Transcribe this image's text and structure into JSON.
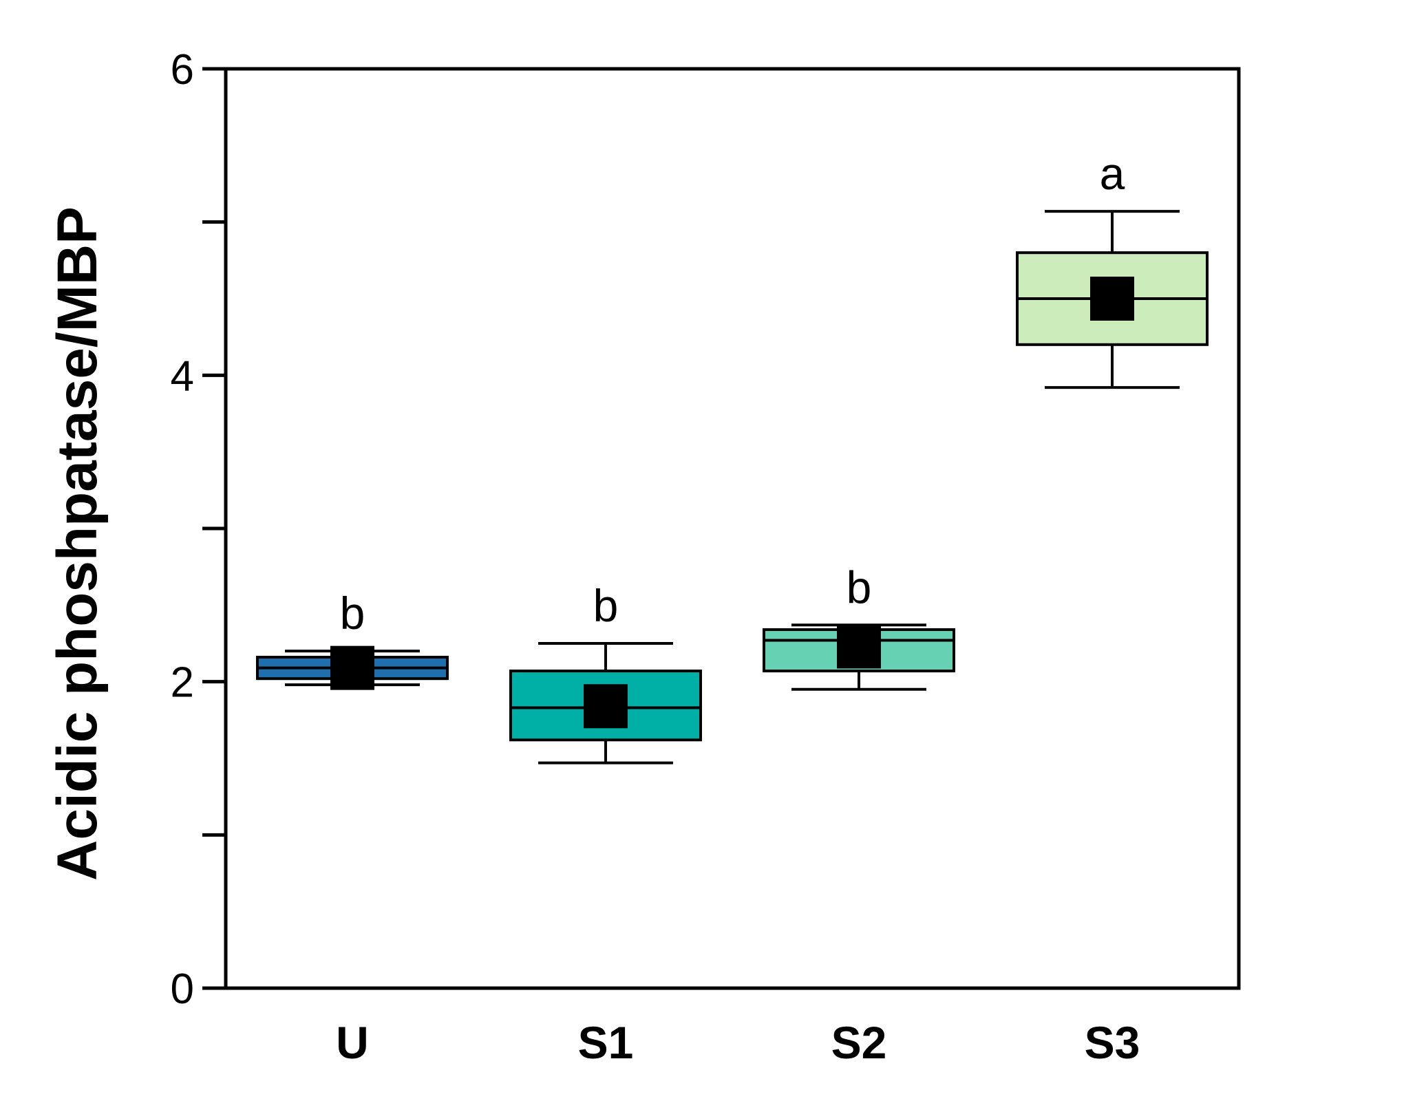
{
  "chart_data": {
    "type": "box",
    "categories": [
      "U",
      "S1",
      "S2",
      "S3"
    ],
    "ylabel": "Acidic phoshpatase/MBP",
    "xlabel": "",
    "ylim": [
      0,
      6
    ],
    "yticks": [
      0,
      1,
      2,
      3,
      4,
      5,
      6
    ],
    "ytick_labels": [
      "0",
      "",
      "2",
      "",
      "4",
      "",
      "6"
    ],
    "grid": false,
    "legend": "none",
    "boxes": [
      {
        "category": "U",
        "whisker_low": 1.98,
        "q1": 2.02,
        "median": 2.09,
        "q3": 2.16,
        "whisker_high": 2.2,
        "mean": 2.09,
        "color": "#1f6fae",
        "sig": "b"
      },
      {
        "category": "S1",
        "whisker_low": 1.47,
        "q1": 1.62,
        "median": 1.83,
        "q3": 2.07,
        "whisker_high": 2.25,
        "mean": 1.84,
        "color": "#00b0a6",
        "sig": "b"
      },
      {
        "category": "S2",
        "whisker_low": 1.95,
        "q1": 2.07,
        "median": 2.27,
        "q3": 2.34,
        "whisker_high": 2.37,
        "mean": 2.23,
        "color": "#66d1b3",
        "sig": "b"
      },
      {
        "category": "S3",
        "whisker_low": 3.92,
        "q1": 4.2,
        "median": 4.5,
        "q3": 4.8,
        "whisker_high": 5.07,
        "mean": 4.5,
        "color": "#ccecbb",
        "sig": "a"
      }
    ]
  }
}
